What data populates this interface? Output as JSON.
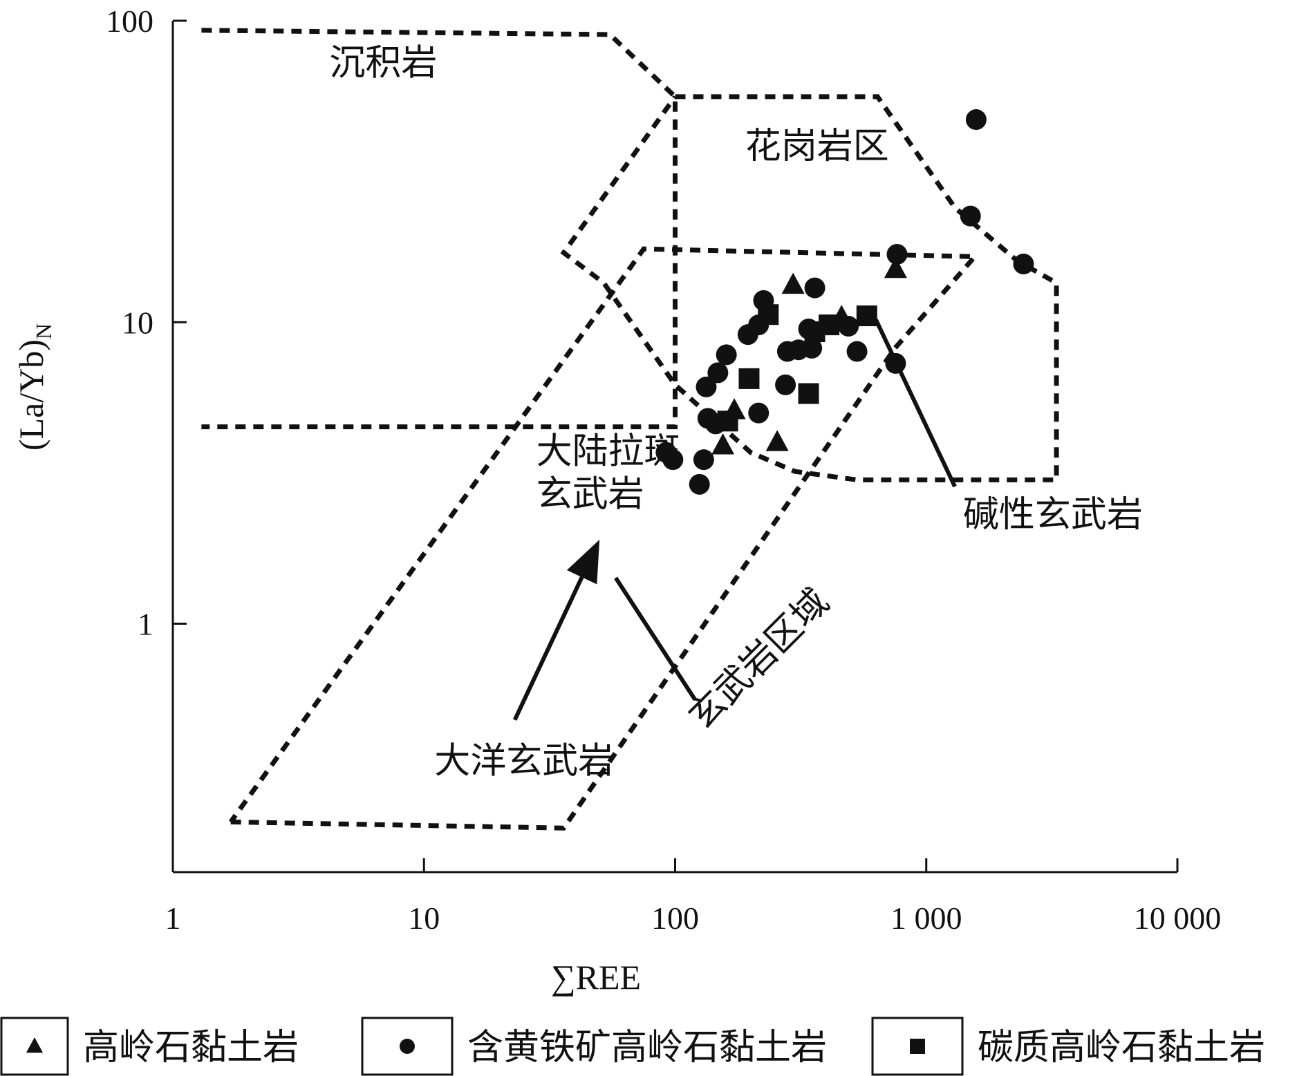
{
  "chart_data": {
    "type": "scatter",
    "title": "",
    "xlabel": "∑REE",
    "ylabel": "(La/Yb)",
    "ylabel_subscript": "N",
    "x_scale": "log",
    "y_scale": "log",
    "xlim": [
      1,
      10000
    ],
    "ylim": [
      0.15,
      100
    ],
    "x_ticks": [
      {
        "value": 1,
        "label": "1"
      },
      {
        "value": 10,
        "label": "10"
      },
      {
        "value": 100,
        "label": "100"
      },
      {
        "value": 1000,
        "label": "1 000"
      },
      {
        "value": 10000,
        "label": "10 000"
      }
    ],
    "y_ticks": [
      {
        "value": 1,
        "label": "1"
      },
      {
        "value": 10,
        "label": "10"
      },
      {
        "value": 100,
        "label": "100"
      }
    ],
    "grid": false,
    "legend_position": "bottom",
    "regions": [
      {
        "name": "沉积岩",
        "outline": [
          [
            1.3,
            93
          ],
          [
            55,
            90
          ],
          [
            100,
            56
          ],
          [
            100,
            4.5
          ],
          [
            1.3,
            4.5
          ]
        ],
        "label_at": [
          4.2,
          66
        ]
      },
      {
        "name": "花岗岩区",
        "outline": [
          [
            100,
            56
          ],
          [
            640,
            56
          ],
          [
            1300,
            24
          ],
          [
            2300,
            16
          ],
          [
            3300,
            13.5
          ],
          [
            3300,
            3.0
          ],
          [
            530,
            3.0
          ],
          [
            300,
            3.2
          ],
          [
            200,
            3.7
          ],
          [
            100,
            6.2
          ],
          [
            52,
            13.5
          ],
          [
            36,
            17
          ],
          [
            100,
            56
          ]
        ],
        "label_at": [
          190,
          35
        ]
      },
      {
        "name": "大陆拉斑玄武岩",
        "label_lines": [
          "大陆拉斑",
          "玄武岩"
        ],
        "outline": [
          [
            1.7,
            0.22
          ],
          [
            36,
            0.21
          ],
          [
            750,
            8.2
          ],
          [
            1560,
            16.5
          ],
          [
            75,
            17.5
          ],
          [
            1.7,
            0.22
          ]
        ],
        "label_at": [
          28,
          3.4
        ]
      },
      {
        "name": "大洋玄武岩",
        "label_at": [
          11,
          0.32
        ]
      },
      {
        "name": "玄武岩区域",
        "label_at": [
          130,
          0.44
        ],
        "label_rotation_deg": -45
      },
      {
        "name": "碱性玄武岩",
        "label_at": [
          1400,
          2.1
        ]
      }
    ],
    "annotations": [
      {
        "type": "arrow",
        "from": [
          23,
          0.48
        ],
        "to": [
          50,
          1.9
        ]
      },
      {
        "type": "line",
        "from": [
          58,
          1.42
        ],
        "to": [
          120,
          0.56
        ]
      },
      {
        "type": "line",
        "from": [
          630,
          10.2
        ],
        "to": [
          1300,
          2.85
        ]
      }
    ],
    "series": [
      {
        "name": "高岭石黏土岩",
        "marker": "triangle",
        "points": [
          [
            295,
            13.3
          ],
          [
            460,
            10.4
          ],
          [
            755,
            15.0
          ],
          [
            172,
            5.1
          ],
          [
            155,
            3.9
          ],
          [
            255,
            4.0
          ]
        ]
      },
      {
        "name": "含黄铁矿高岭石黏土岩",
        "marker": "circle",
        "points": [
          [
            1580,
            47
          ],
          [
            1500,
            22.5
          ],
          [
            2440,
            15.6
          ],
          [
            765,
            16.8
          ],
          [
            360,
            13.0
          ],
          [
            225,
            11.8
          ],
          [
            215,
            9.8
          ],
          [
            195,
            9.1
          ],
          [
            340,
            9.5
          ],
          [
            310,
            8.1
          ],
          [
            280,
            8.0
          ],
          [
            350,
            8.2
          ],
          [
            490,
            9.7
          ],
          [
            530,
            8.0
          ],
          [
            160,
            7.8
          ],
          [
            148,
            6.8
          ],
          [
            133,
            6.1
          ],
          [
            275,
            6.2
          ],
          [
            215,
            5.0
          ],
          [
            135,
            4.8
          ],
          [
            145,
            4.6
          ],
          [
            92,
            3.7
          ],
          [
            98,
            3.5
          ],
          [
            130,
            3.5
          ],
          [
            125,
            2.9
          ],
          [
            755,
            7.3
          ]
        ]
      },
      {
        "name": "碳质高岭石黏土岩",
        "marker": "square",
        "points": [
          [
            580,
            10.5
          ],
          [
            410,
            9.8
          ],
          [
            360,
            9.3
          ],
          [
            235,
            10.6
          ],
          [
            197,
            6.5
          ],
          [
            340,
            5.8
          ],
          [
            162,
            4.7
          ]
        ]
      }
    ]
  }
}
